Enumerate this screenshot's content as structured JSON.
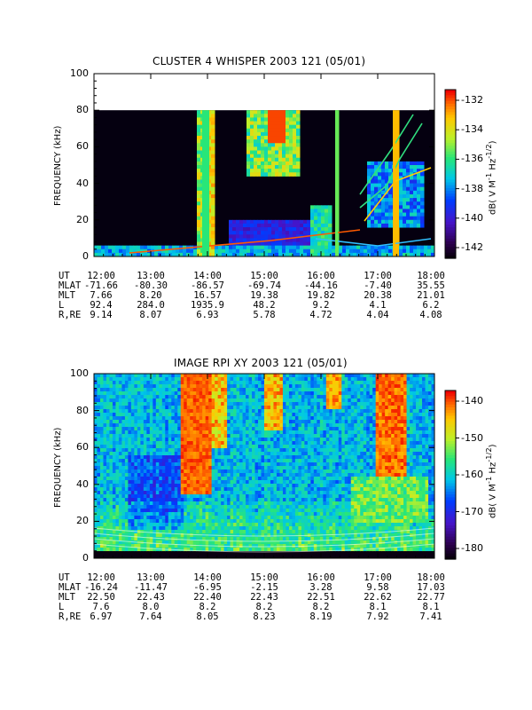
{
  "chart_data": [
    {
      "type": "heatmap",
      "title": "CLUSTER 4 WHISPER 2003 121 (05/01)",
      "ylabel": "FREQUENCY (kHz)",
      "ylim": [
        0,
        100
      ],
      "y_ticks": [
        "0",
        "20",
        "40",
        "60",
        "80",
        "100"
      ],
      "x_ticks": [
        "12:00",
        "13:00",
        "14:00",
        "15:00",
        "16:00",
        "17:00",
        "18:00"
      ],
      "xlim": [
        "12:00",
        "18:00"
      ],
      "data_ymax": 80,
      "colorbar": {
        "label": "dB( V M⁻¹ Hz⁻¹ᐟ²)",
        "label_text": "dB( V M-1 Hz-1/2)",
        "range": [
          -144,
          -131
        ],
        "ticks": [
          "-132",
          "-134",
          "-136",
          "-138",
          "-140",
          "-142"
        ]
      },
      "ephemeris": {
        "rows": [
          {
            "label": "UT",
            "values": [
              "12:00",
              "13:00",
              "14:00",
              "15:00",
              "16:00",
              "17:00",
              "18:00"
            ]
          },
          {
            "label": "MLAT",
            "values": [
              "-71.66",
              "-80.30",
              "-86.57",
              "-69.74",
              "-44.16",
              "-7.40",
              "35.55"
            ]
          },
          {
            "label": "MLT",
            "values": [
              "7.66",
              "8.20",
              "16.57",
              "19.38",
              "19.82",
              "20.38",
              "21.01"
            ]
          },
          {
            "label": "L",
            "values": [
              "92.4",
              "284.0",
              "1935.9",
              "48.2",
              "9.2",
              "4.1",
              "6.2"
            ]
          },
          {
            "label": "R,RE",
            "values": [
              "9.14",
              "8.07",
              "6.93",
              "5.78",
              "4.72",
              "4.04",
              "4.08"
            ]
          }
        ]
      }
    },
    {
      "type": "heatmap",
      "title": "IMAGE RPI XY 2003 121 (05/01)",
      "ylabel": "FREQUENCY (kHz)",
      "ylim": [
        0,
        100
      ],
      "y_ticks": [
        "0",
        "20",
        "40",
        "60",
        "80",
        "100"
      ],
      "x_ticks": [
        "12:00",
        "13:00",
        "14:00",
        "15:00",
        "16:00",
        "17:00",
        "18:00"
      ],
      "xlim": [
        "12:00",
        "18:00"
      ],
      "colorbar": {
        "label_text": "dB( V M-1 Hz-1/2)",
        "range": [
          -185,
          -135
        ],
        "ticks": [
          "-140",
          "-150",
          "-160",
          "-170",
          "-180"
        ]
      },
      "ephemeris": {
        "rows": [
          {
            "label": "UT",
            "values": [
              "12:00",
              "13:00",
              "14:00",
              "15:00",
              "16:00",
              "17:00",
              "18:00"
            ]
          },
          {
            "label": "MLAT",
            "values": [
              "-16.24",
              "-11.47",
              "-6.95",
              "-2.15",
              "3.28",
              "9.58",
              "17.03"
            ]
          },
          {
            "label": "MLT",
            "values": [
              "22.50",
              "22.43",
              "22.40",
              "22.43",
              "22.51",
              "22.62",
              "22.77"
            ]
          },
          {
            "label": "L",
            "values": [
              "7.6",
              "8.0",
              "8.2",
              "8.2",
              "8.2",
              "8.1",
              "8.1"
            ]
          },
          {
            "label": "R,RE",
            "values": [
              "6.97",
              "7.64",
              "8.05",
              "8.23",
              "8.19",
              "7.92",
              "7.41"
            ]
          }
        ]
      }
    }
  ]
}
